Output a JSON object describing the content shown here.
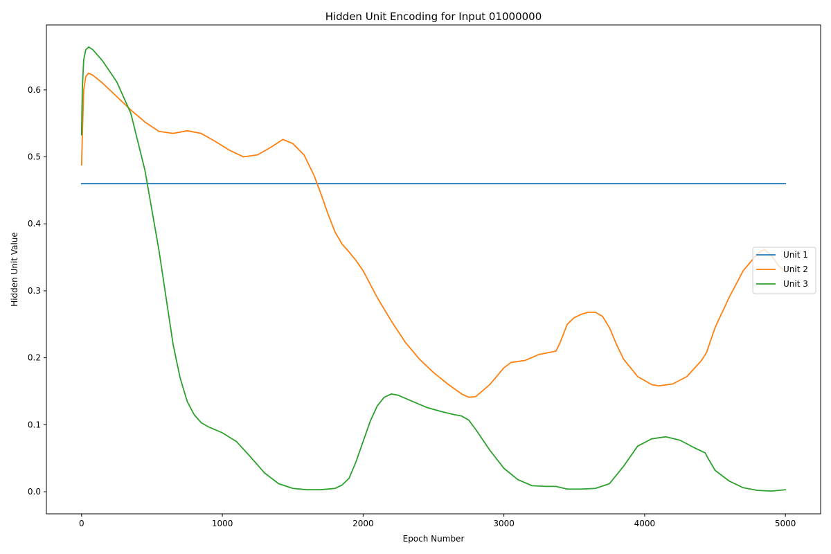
{
  "chart_data": {
    "type": "line",
    "title": "Hidden Unit Encoding for Input 01000000",
    "xlabel": "Epoch Number",
    "ylabel": "Hidden Unit Value",
    "xlim": [
      -250,
      5250
    ],
    "ylim": [
      -0.033,
      0.697
    ],
    "xticks": [
      0,
      1000,
      2000,
      3000,
      4000,
      5000
    ],
    "yticks": [
      0.0,
      0.1,
      0.2,
      0.3,
      0.4,
      0.5,
      0.6
    ],
    "grid": false,
    "legend": "center-right",
    "colors": {
      "unit1": "#1f77b4",
      "unit2": "#ff7f0e",
      "unit3": "#2ca02c"
    },
    "series": [
      {
        "name": "Unit 1",
        "color": "#1f77b4",
        "x": [
          0,
          5000
        ],
        "y": [
          0.46,
          0.46
        ]
      },
      {
        "name": "Unit 2",
        "color": "#ff7f0e",
        "x": [
          0,
          5,
          15,
          30,
          50,
          80,
          150,
          250,
          350,
          450,
          550,
          650,
          750,
          850,
          950,
          1050,
          1150,
          1250,
          1350,
          1430,
          1500,
          1580,
          1650,
          1700,
          1750,
          1800,
          1850,
          1900,
          1950,
          2000,
          2100,
          2200,
          2300,
          2400,
          2500,
          2600,
          2700,
          2750,
          2800,
          2900,
          3000,
          3050,
          3150,
          3250,
          3300,
          3370,
          3400,
          3450,
          3500,
          3550,
          3600,
          3650,
          3700,
          3750,
          3800,
          3850,
          3950,
          4050,
          4100,
          4200,
          4300,
          4400,
          4440,
          4500,
          4600,
          4700,
          4800,
          4850,
          4900,
          4950,
          5000
        ],
        "y": [
          0.488,
          0.53,
          0.6,
          0.62,
          0.625,
          0.622,
          0.61,
          0.59,
          0.57,
          0.552,
          0.538,
          0.535,
          0.539,
          0.535,
          0.523,
          0.51,
          0.5,
          0.503,
          0.515,
          0.526,
          0.52,
          0.503,
          0.473,
          0.445,
          0.415,
          0.388,
          0.37,
          0.358,
          0.345,
          0.33,
          0.29,
          0.255,
          0.223,
          0.198,
          0.178,
          0.161,
          0.146,
          0.141,
          0.142,
          0.16,
          0.185,
          0.193,
          0.196,
          0.205,
          0.207,
          0.21,
          0.223,
          0.25,
          0.26,
          0.265,
          0.268,
          0.268,
          0.262,
          0.245,
          0.22,
          0.198,
          0.172,
          0.16,
          0.158,
          0.161,
          0.172,
          0.195,
          0.208,
          0.245,
          0.29,
          0.33,
          0.355,
          0.362,
          0.353,
          0.338,
          0.328
        ]
      },
      {
        "name": "Unit 3",
        "color": "#2ca02c",
        "x": [
          0,
          5,
          15,
          30,
          50,
          80,
          150,
          250,
          350,
          450,
          550,
          600,
          650,
          700,
          750,
          800,
          850,
          900,
          1000,
          1100,
          1200,
          1300,
          1400,
          1500,
          1600,
          1700,
          1800,
          1850,
          1900,
          1950,
          2000,
          2050,
          2100,
          2150,
          2200,
          2250,
          2350,
          2450,
          2550,
          2650,
          2700,
          2750,
          2800,
          2900,
          3000,
          3100,
          3200,
          3300,
          3370,
          3450,
          3550,
          3650,
          3750,
          3850,
          3950,
          4050,
          4150,
          4250,
          4350,
          4430,
          4450,
          4500,
          4600,
          4700,
          4800,
          4900,
          5000
        ],
        "y": [
          0.533,
          0.6,
          0.645,
          0.66,
          0.664,
          0.66,
          0.643,
          0.612,
          0.565,
          0.48,
          0.36,
          0.29,
          0.22,
          0.17,
          0.135,
          0.115,
          0.103,
          0.097,
          0.088,
          0.075,
          0.052,
          0.028,
          0.012,
          0.005,
          0.003,
          0.003,
          0.005,
          0.01,
          0.02,
          0.045,
          0.075,
          0.105,
          0.128,
          0.141,
          0.146,
          0.144,
          0.135,
          0.126,
          0.12,
          0.115,
          0.113,
          0.107,
          0.093,
          0.062,
          0.035,
          0.018,
          0.009,
          0.008,
          0.008,
          0.004,
          0.004,
          0.005,
          0.012,
          0.038,
          0.068,
          0.079,
          0.082,
          0.077,
          0.066,
          0.058,
          0.05,
          0.032,
          0.016,
          0.006,
          0.002,
          0.001,
          0.003
        ]
      }
    ]
  }
}
